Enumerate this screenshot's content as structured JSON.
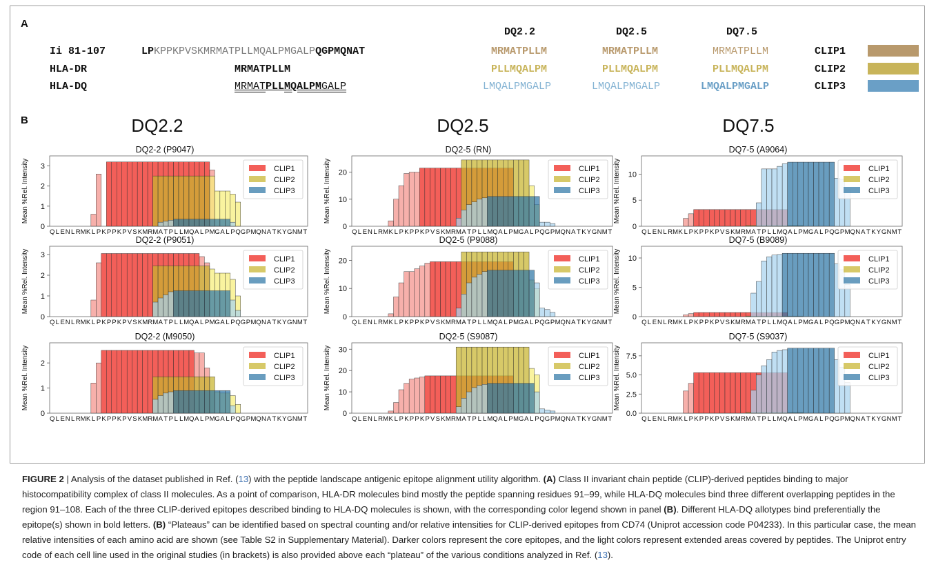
{
  "panel_a": {
    "letter": "A",
    "col_headers": [
      "DQ2.2",
      "DQ2.5",
      "DQ7.5"
    ],
    "rows": [
      {
        "label": "Ii 81-107",
        "seq_lp": "LP",
        "seq_mid": "KPPKPVSKMRMATPLLMQALPMGALP",
        "seq_end": "QGPMQNAT",
        "cols": [
          "MRMATPLLM",
          "MRMATPLLM",
          "MRMATPLLM"
        ],
        "clip": "CLIP1"
      },
      {
        "label": "HLA-DR",
        "seq": "MRMATPLLM",
        "cols": [
          "PLLMQALPM",
          "PLLMQALPM",
          "PLLMQALPM"
        ],
        "clip": "CLIP2"
      },
      {
        "label": "HLA-DQ",
        "seq_a": "MRMAT",
        "seq_b": "PLL",
        "seq_c": "MQALPM",
        "seq_d": "GALP",
        "cols": [
          "LMQALPMGALP",
          "LMQALPMGALP",
          "LMQALPMGALP"
        ],
        "clip": "CLIP3"
      }
    ],
    "swatch_colors": [
      "#b8996c",
      "#c8b45a",
      "#6a9fc6"
    ]
  },
  "panel_b": {
    "letter": "B",
    "col_titles": [
      "DQ2.2",
      "DQ2.5",
      "DQ7.5"
    ]
  },
  "colors": {
    "clip1_dark": "#f0322a",
    "clip1_light": "#f59a94",
    "clip2_dark": "#c8b42e",
    "clip2_light": "#f6ee7a",
    "clip3_dark": "#2f77a6",
    "clip3_light": "#a7d3ee"
  },
  "chart_data": [
    {
      "type": "bar",
      "title": "DQ2-2 (P9047)",
      "ylabel": "Mean %Rel. Intensity",
      "xticks": "QLENLRMKLPKPPKPVSKMRMATPLLMQALPMGALPQGPMQNATKYGNMT",
      "yticks": [
        "0",
        "1",
        "2",
        "3"
      ],
      "ylim": [
        0,
        3.5
      ],
      "series": [
        {
          "name": "CLIP1",
          "core": 3.2,
          "core_range": [
            11,
            30
          ],
          "ext": [
            [
              8,
              0.6
            ],
            [
              9,
              2.6
            ],
            [
              31,
              2.8
            ]
          ]
        },
        {
          "name": "CLIP2",
          "core": 2.5,
          "core_range": [
            20,
            30
          ],
          "ext": [
            [
              31,
              2.5
            ],
            [
              32,
              1.75
            ],
            [
              33,
              1.75
            ],
            [
              34,
              1.75
            ],
            [
              35,
              1.6
            ],
            [
              36,
              1.2
            ]
          ]
        },
        {
          "name": "CLIP3",
          "core": 0.35,
          "core_range": [
            24,
            34
          ],
          "ext": [
            [
              21,
              0.2
            ],
            [
              22,
              0.25
            ],
            [
              23,
              0.3
            ],
            [
              35,
              0.2
            ]
          ]
        }
      ],
      "legend": [
        "CLIP1",
        "CLIP2",
        "CLIP3"
      ]
    },
    {
      "type": "bar",
      "title": "DQ2-5 (RN)",
      "ylabel": "Mean %Rel. Intensity",
      "xticks": "QLENLRMKLPKPPKPVSKMRMATPLLMQALPMGALPQGPMQNATKYGNMT",
      "yticks": [
        "0",
        "10",
        "20"
      ],
      "ylim": [
        0,
        26
      ],
      "series": [
        {
          "name": "CLIP1",
          "core": 21.5,
          "core_range": [
            13,
            30
          ],
          "ext": [
            [
              7,
              2
            ],
            [
              8,
              10
            ],
            [
              9,
              15
            ],
            [
              10,
              19.5
            ],
            [
              11,
              20
            ],
            [
              12,
              20
            ]
          ]
        },
        {
          "name": "CLIP2",
          "core": 24.5,
          "core_range": [
            21,
            33
          ],
          "ext": [
            [
              34,
              15
            ],
            [
              35,
              8
            ]
          ]
        },
        {
          "name": "CLIP3",
          "core": 11,
          "core_range": [
            26,
            35
          ],
          "ext": [
            [
              20,
              3
            ],
            [
              21,
              6
            ],
            [
              22,
              8
            ],
            [
              23,
              9
            ],
            [
              24,
              10
            ],
            [
              25,
              10.5
            ],
            [
              36,
              1.5
            ],
            [
              37,
              1.5
            ],
            [
              38,
              1
            ]
          ]
        }
      ],
      "legend": [
        "CLIP1",
        "CLIP2",
        "CLIP3"
      ]
    },
    {
      "type": "bar",
      "title": "DQ7-5 (A9064)",
      "ylabel": "Mean %Rel. Intensity",
      "xticks": "QLENLRMKLPKPPKPVSKMRMATPLLMQALPMGALPQGPMQNATKYGNMT",
      "yticks": [
        "0",
        "5",
        "10"
      ],
      "ylim": [
        0,
        13.5
      ],
      "series": [
        {
          "name": "CLIP1",
          "core": 3.2,
          "core_range": [
            10,
            27
          ],
          "ext": [
            [
              8,
              1.5
            ],
            [
              9,
              2.4
            ]
          ]
        },
        {
          "name": "CLIP2",
          "core": 0.15,
          "core_range": [
            20,
            30
          ],
          "ext": []
        },
        {
          "name": "CLIP3",
          "core": 12.3,
          "core_range": [
            28,
            36
          ],
          "ext": [
            [
              22,
              4.5
            ],
            [
              23,
              11
            ],
            [
              24,
              11
            ],
            [
              25,
              11
            ],
            [
              26,
              11.5
            ],
            [
              27,
              12
            ],
            [
              37,
              9.2
            ],
            [
              38,
              9
            ],
            [
              39,
              7
            ]
          ]
        }
      ],
      "legend": [
        "CLIP1",
        "CLIP2",
        "CLIP3"
      ]
    },
    {
      "type": "bar",
      "title": "DQ2-2 (P9051)",
      "ylabel": "Mean %Rel. Intensity",
      "xticks": "QLENLRMKLPKPPKPVSKMRMATPLLMQALPMGALPQGPMQNATKYGNMT",
      "yticks": [
        "0",
        "1",
        "2",
        "3"
      ],
      "ylim": [
        0,
        3.4
      ],
      "series": [
        {
          "name": "CLIP1",
          "core": 3.05,
          "core_range": [
            10,
            28
          ],
          "ext": [
            [
              8,
              0.8
            ],
            [
              9,
              2.6
            ],
            [
              29,
              2.9
            ],
            [
              30,
              2.6
            ]
          ]
        },
        {
          "name": "CLIP2",
          "core": 2.45,
          "core_range": [
            20,
            30
          ],
          "ext": [
            [
              31,
              2.3
            ],
            [
              32,
              2.1
            ],
            [
              33,
              2.1
            ],
            [
              34,
              2.1
            ],
            [
              35,
              1.8
            ],
            [
              36,
              1.0
            ]
          ]
        },
        {
          "name": "CLIP3",
          "core": 1.25,
          "core_range": [
            24,
            34
          ],
          "ext": [
            [
              20,
              0.7
            ],
            [
              21,
              0.9
            ],
            [
              22,
              1.05
            ],
            [
              23,
              1.2
            ],
            [
              35,
              0.8
            ],
            [
              36,
              0.3
            ]
          ]
        }
      ],
      "legend": [
        "CLIP1",
        "CLIP2",
        "CLIP3"
      ]
    },
    {
      "type": "bar",
      "title": "DQ2-5 (P9088)",
      "ylabel": "Mean %Rel. Intensity",
      "xticks": "QLENLRMKLPKPPKPVSKMRMATPLLMQALPMGALPQGPMQNATKYGNMT",
      "yticks": [
        "0",
        "10",
        "20"
      ],
      "ylim": [
        0,
        25
      ],
      "series": [
        {
          "name": "CLIP1",
          "core": 19.5,
          "core_range": [
            15,
            30
          ],
          "ext": [
            [
              7,
              1
            ],
            [
              8,
              7
            ],
            [
              9,
              12
            ],
            [
              10,
              16
            ],
            [
              11,
              16
            ],
            [
              12,
              17
            ],
            [
              13,
              18
            ],
            [
              14,
              19
            ]
          ]
        },
        {
          "name": "CLIP2",
          "core": 23,
          "core_range": [
            21,
            33
          ],
          "ext": [
            [
              34,
              13
            ],
            [
              35,
              10
            ]
          ]
        },
        {
          "name": "CLIP3",
          "core": 16.5,
          "core_range": [
            26,
            34
          ],
          "ext": [
            [
              20,
              3
            ],
            [
              21,
              8
            ],
            [
              22,
              12
            ],
            [
              23,
              14
            ],
            [
              24,
              15
            ],
            [
              25,
              16
            ],
            [
              35,
              12
            ],
            [
              36,
              3
            ],
            [
              37,
              2.5
            ],
            [
              38,
              1.5
            ]
          ]
        }
      ],
      "legend": [
        "CLIP1",
        "CLIP2",
        "CLIP3"
      ]
    },
    {
      "type": "bar",
      "title": "DQ7-5 (B9089)",
      "ylabel": "Mean %Rel. Intensity",
      "xticks": "QLENLRMKLPKPPKPVSKMRMATPLLMQALPMGALPQGPMQNATKYGNMT",
      "yticks": [
        "0",
        "5",
        "10"
      ],
      "ylim": [
        0,
        12
      ],
      "series": [
        {
          "name": "CLIP1",
          "core": 0.7,
          "core_range": [
            10,
            27
          ],
          "ext": [
            [
              8,
              0.3
            ],
            [
              9,
              0.5
            ]
          ]
        },
        {
          "name": "CLIP2",
          "core": 0.1,
          "core_range": [
            20,
            30
          ],
          "ext": []
        },
        {
          "name": "CLIP3",
          "core": 10.8,
          "core_range": [
            27,
            36
          ],
          "ext": [
            [
              21,
              4
            ],
            [
              22,
              6
            ],
            [
              23,
              9.5
            ],
            [
              24,
              10.2
            ],
            [
              25,
              10.5
            ],
            [
              26,
              10.6
            ],
            [
              37,
              9
            ],
            [
              38,
              8
            ],
            [
              39,
              5.5
            ]
          ]
        }
      ],
      "legend": [
        "CLIP1",
        "CLIP2",
        "CLIP3"
      ]
    },
    {
      "type": "bar",
      "title": "DQ2-2 (M9050)",
      "ylabel": "Mean %Rel. Intensity",
      "xticks": "QLENLRMKLPKPPKPVSKMRMATPLLMQALPMGALPQGPMQNATKYGNMT",
      "yticks": [
        "0",
        "1",
        "2"
      ],
      "ylim": [
        0,
        2.8
      ],
      "series": [
        {
          "name": "CLIP1",
          "core": 2.5,
          "core_range": [
            10,
            27
          ],
          "ext": [
            [
              8,
              1.2
            ],
            [
              9,
              2.0
            ],
            [
              28,
              2.4
            ],
            [
              29,
              2.4
            ],
            [
              30,
              1.8
            ]
          ]
        },
        {
          "name": "CLIP2",
          "core": 1.45,
          "core_range": [
            20,
            31
          ],
          "ext": [
            [
              32,
              0.85
            ],
            [
              33,
              0.8
            ],
            [
              34,
              0.8
            ],
            [
              35,
              0.7
            ],
            [
              36,
              0.35
            ]
          ]
        },
        {
          "name": "CLIP3",
          "core": 0.9,
          "core_range": [
            24,
            34
          ],
          "ext": [
            [
              20,
              0.55
            ],
            [
              21,
              0.7
            ],
            [
              22,
              0.8
            ],
            [
              23,
              0.85
            ],
            [
              35,
              0.3
            ]
          ]
        }
      ],
      "legend": [
        "CLIP1",
        "CLIP2",
        "CLIP3"
      ]
    },
    {
      "type": "bar",
      "title": "DQ2-5 (S9087)",
      "ylabel": "Mean %Rel. Intensity",
      "xticks": "QLENLRMKLPKPPKPVSKMRMATPLLMQALPMGALPQGPMQNATKYGNMT",
      "yticks": [
        "0",
        "10",
        "20",
        "30"
      ],
      "ylim": [
        0,
        33
      ],
      "series": [
        {
          "name": "CLIP1",
          "core": 17.5,
          "core_range": [
            14,
            30
          ],
          "ext": [
            [
              7,
              1
            ],
            [
              8,
              5
            ],
            [
              9,
              11
            ],
            [
              10,
              14
            ],
            [
              11,
              16
            ],
            [
              12,
              16.5
            ],
            [
              13,
              17
            ]
          ]
        },
        {
          "name": "CLIP2",
          "core": 31,
          "core_range": [
            20,
            33
          ],
          "ext": [
            [
              34,
              21
            ],
            [
              35,
              18
            ]
          ]
        },
        {
          "name": "CLIP3",
          "core": 14,
          "core_range": [
            26,
            34
          ],
          "ext": [
            [
              20,
              3
            ],
            [
              21,
              7
            ],
            [
              22,
              10
            ],
            [
              23,
              12
            ],
            [
              24,
              13
            ],
            [
              25,
              13.5
            ],
            [
              35,
              10
            ],
            [
              36,
              2
            ],
            [
              37,
              1.5
            ],
            [
              38,
              1
            ]
          ]
        }
      ],
      "legend": [
        "CLIP1",
        "CLIP2",
        "CLIP3"
      ]
    },
    {
      "type": "bar",
      "title": "DQ7-5 (S9037)",
      "ylabel": "Mean %Rel. Intensity",
      "xticks": "QLENLRMKLPKPPKPVSKMRMATPLLMQALPMGALPQGPMQNATKYGNMT",
      "yticks": [
        "0.0",
        "2.5",
        "5.0",
        "7.5"
      ],
      "ylim": [
        0,
        9.2
      ],
      "series": [
        {
          "name": "CLIP1",
          "core": 5.3,
          "core_range": [
            10,
            27
          ],
          "ext": [
            [
              8,
              2.9
            ],
            [
              9,
              3.9
            ]
          ]
        },
        {
          "name": "CLIP2",
          "core": 0.1,
          "core_range": [
            20,
            30
          ],
          "ext": []
        },
        {
          "name": "CLIP3",
          "core": 8.5,
          "core_range": [
            28,
            36
          ],
          "ext": [
            [
              21,
              3
            ],
            [
              22,
              5
            ],
            [
              23,
              6.2
            ],
            [
              24,
              7
            ],
            [
              25,
              8
            ],
            [
              26,
              8.2
            ],
            [
              27,
              8.3
            ],
            [
              37,
              7
            ],
            [
              38,
              6
            ],
            [
              39,
              4
            ]
          ]
        }
      ],
      "legend": [
        "CLIP1",
        "CLIP2",
        "CLIP3"
      ]
    }
  ],
  "caption": {
    "fig": "FIGURE 2",
    "parts": [
      " | Analysis of the dataset published in Ref. (",
      "13",
      ") with the peptide landscape antigenic epitope alignment utility algorithm. ",
      "(A)",
      " Class II invariant chain peptide (CLIP)-derived peptides binding to major histocompatibility complex of class II molecules. As a point of comparison, HLA-DR molecules bind mostly the peptide spanning residues 91–99, while HLA-DQ molecules bind three different overlapping peptides in the region 91–108. Each of the three CLIP-derived epitopes described binding to HLA-DQ molecules is shown, with the corresponding color legend shown in panel ",
      "(B)",
      ". Different HLA-DQ allotypes bind preferentially the epitope(s) shown in bold letters. ",
      "(B)",
      " “Plateaus” can be identified based on spectral counting and/or relative intensities for CLIP-derived epitopes from CD74 (Uniprot accession code P04233). In this particular case, the mean relative intensities of each amino acid are shown (see Table S2 in Supplementary Material). Darker colors represent the core epitopes, and the light colors represent extended areas covered by peptides. The Uniprot entry code of each cell line used in the original studies (in brackets) is also provided above each “plateau” of the various conditions analyzed in Ref. (",
      "13",
      ")."
    ]
  }
}
